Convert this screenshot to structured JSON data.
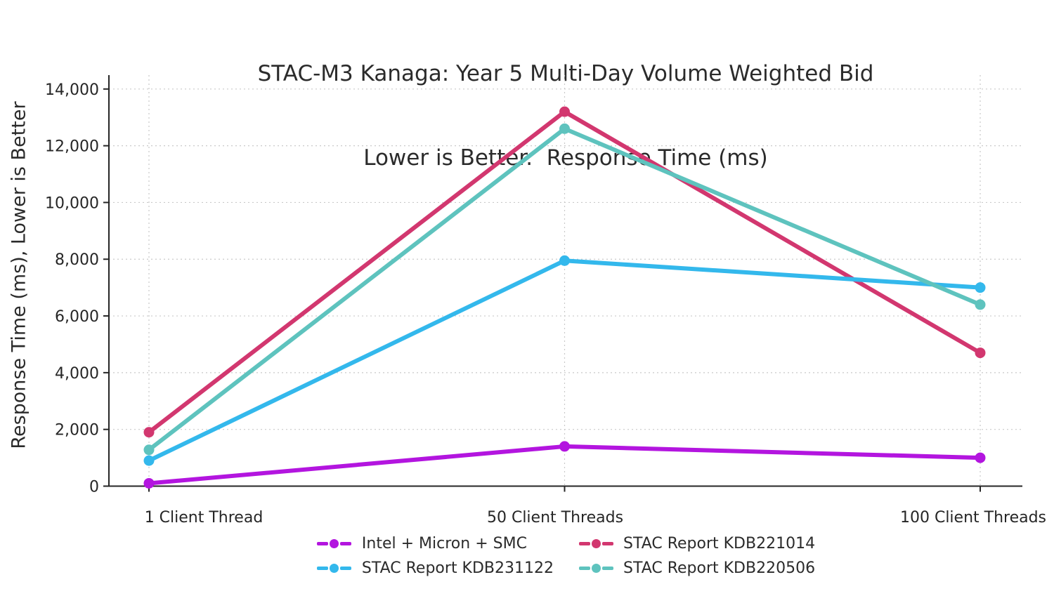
{
  "title": {
    "line1": "STAC-M3 Kanaga: Year 5 Multi-Day Volume Weighted Bid",
    "line2": "Lower is Better.  Response Time (ms)"
  },
  "chart_data": {
    "type": "line",
    "title": "STAC-M3 Kanaga: Year 5 Multi-Day Volume Weighted Bid — Lower is Better.  Response Time (ms)",
    "xlabel": "",
    "ylabel": "Response Time (ms), Lower is Better",
    "categories": [
      "1 Client Thread",
      "50 Client Threads",
      "100 Client Threads"
    ],
    "series": [
      {
        "name": "Intel + Micron + SMC",
        "color": "#b315df",
        "values": [
          100,
          1400,
          1000
        ]
      },
      {
        "name": "STAC Report KDB221014",
        "color": "#d2376f",
        "values": [
          1900,
          13200,
          4700
        ]
      },
      {
        "name": "STAC Report KDB231122",
        "color": "#33b8ec",
        "values": [
          900,
          7950,
          7000
        ]
      },
      {
        "name": "STAC Report KDB220506",
        "color": "#5ec3be",
        "values": [
          1280,
          12600,
          6400
        ]
      }
    ],
    "ylim": [
      0,
      14000
    ],
    "yticks": [
      0,
      2000,
      4000,
      6000,
      8000,
      10000,
      12000,
      14000
    ],
    "ytick_labels": [
      "0",
      "2,000",
      "4,000",
      "6,000",
      "8,000",
      "10,000",
      "12,000",
      "14,000"
    ],
    "grid": true,
    "gridline_style": "dotted",
    "legend_position": "bottom-center",
    "marker": "circle",
    "axis_color": "#262626",
    "grid_color": "#c9c9c9"
  }
}
